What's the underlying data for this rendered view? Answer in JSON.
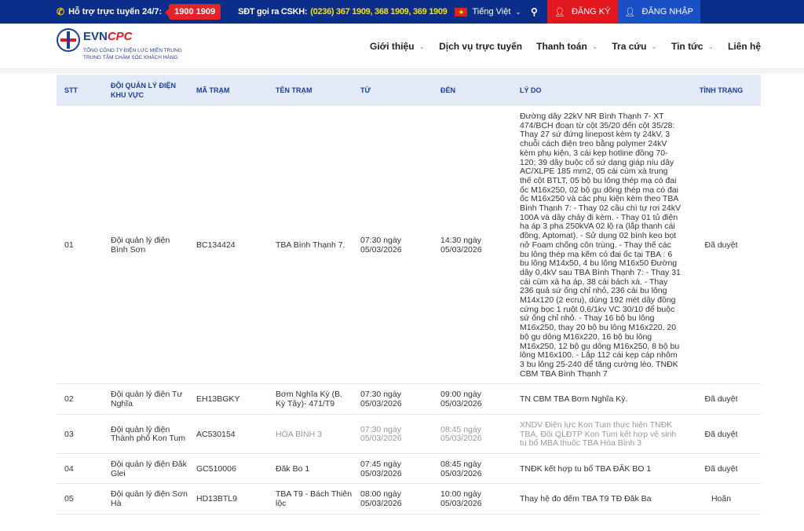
{
  "topbar": {
    "support_label": "Hỗ trợ trực tuyến 24/7:",
    "hotline": "1900 1909",
    "cskh_label": "SĐT gọi ra CSKH:",
    "cskh_numbers": "(0236) 367 1909, 368 1909, 369 1909",
    "language": "Tiếng Việt",
    "register": "ĐĂNG KÝ",
    "login": "ĐĂNG NHẬP"
  },
  "logo": {
    "brand_a": "EVN",
    "brand_b": "CPC",
    "line1": "TỔNG CÔNG TY ĐIỆN LỰC MIỀN TRUNG",
    "line2": "TRUNG TÂM CHĂM SÓC KHÁCH HÀNG"
  },
  "menu": [
    {
      "label": "Giới thiệu",
      "dropdown": true
    },
    {
      "label": "Dịch vụ trực tuyến",
      "dropdown": false
    },
    {
      "label": "Thanh toán",
      "dropdown": true
    },
    {
      "label": "Tra cứu",
      "dropdown": true
    },
    {
      "label": "Tin tức",
      "dropdown": true
    },
    {
      "label": "Liên hệ",
      "dropdown": false
    }
  ],
  "table": {
    "headers": [
      "STT",
      "ĐỘI QUẢN LÝ ĐIỆN KHU VỰC",
      "MÃ TRẠM",
      "TÊN TRẠM",
      "TỪ",
      "ĐẾN",
      "LÝ DO",
      "TÌNH TRẠNG"
    ],
    "rows": [
      [
        "01",
        "Đội quản lý điện Bình Sơn",
        "BC134424",
        "TBA Bình Thạnh 7.",
        "07:30 ngày 05/03/2026",
        "14:30 ngày 05/03/2026",
        "Đường dây 22kV NR Bình Thạnh 7- XT 474/BCH đoạn từ cột 35/20 đến cột 35/28: Thay 27 sứ đứng linepost kèm ty 24kV, 3 chuỗi cách điện treo bằng polymer 24kV kèm phụ kiện, 3 cái kẹp hotline đồng 70-120; 39 dây buộc cổ sứ dạng giáp níu dây AC/XLPE 185 mm2, 05 cái cùm xà trung thế cột BTLT, 05 bộ bu lông thép mạ có đai ốc M16x250, 02 bộ gu dông thép mạ có đai ốc M16x250 và các phụ kiện kèm theo TBA Bình Thạnh 7: - Thay 02 cầu chì tự rơi 24kV 100A và dây chảy đi kèm. - Thay 01 tủ điện hạ áp 3 pha 250kVA 02 lộ ra (lắp thanh cái đồng, Aptomat). - Sử dụng 02 bình keo bọt nở Foam chống côn trùng. - Thay thế các bu lông thép mạ kẽm có đai ốc tại TBA : 6 bu lông M14x50, 4 bu lông M16x50 Đường dây 0,4kV sau TBA Bình Thạnh 7: - Thay 31 cái cùm xà hạ áp, 38 cái bách xà. - Thay 236 quả sứ ống chỉ nhỏ, 236 cái bu lông M14x120 (2 ecru), dùng 192 mét dây đồng cứng bọc 1 ruột 0,6/1kv VC 30/10 để buộc sứ ống chỉ nhỏ. - Thay 16 bộ bu lông M16x250, thay 20 bộ bu lông M16x220, 20 bộ gu dông M16x220, 16 bộ bu lông M16x250, 12 bộ gu dông M16x250, 8 bộ bu lông M16x100. - Lắp 112 cái kẹp cáp nhôm 3 bu lông 25-240 để tăng cường lèo. TNĐK CBM TBA Bình Thạnh 7",
        "Đã duyệt"
      ],
      [
        "02",
        "Đội quản lý điện Tư Nghĩa",
        "EH13BGKY",
        "Bơm Nghĩa Kỳ (B. Kỳ Tây)- 471/T9",
        "07:30 ngày 05/03/2026",
        "09:00 ngày 05/03/2026",
        "TN CBM TBA Bơm Nghĩa Kỳ.",
        "Đã duyệt"
      ],
      [
        "03",
        "Đội quản lý điện Thành phố Kon Tum",
        "AC530154",
        "HÒA BÌNH 3",
        "07:30 ngày 05/03/2026",
        "08:45 ngày 05/03/2026",
        "XNDV Điện lực Kon Tum thực hiện TNĐK TBA, Đội QLĐTP Kon Tum kết hợp vệ sinh tu bổ MBA thuộc TBA Hòa Bình 3",
        "Đã duyệt"
      ],
      [
        "04",
        "Đội quản lý điện Đăk Glei",
        "GC510006",
        "Đăk Bo 1",
        "07:45 ngày 05/03/2026",
        "08:45 ngày 05/03/2026",
        "TNĐK kết hợp tu bổ TBA ĐĂK BO 1",
        "Đã duyệt"
      ],
      [
        "05",
        "Đội quản lý điện Sơn Hà",
        "HD13BTL9",
        "TBA T9 - Bách Thiên lộc",
        "08:00 ngày 05/03/2026",
        "10:00 ngày 05/03/2026",
        "Thay hệ đo đếm TBA T9 TĐ Đăk Ba",
        "Hoãn"
      ]
    ]
  }
}
